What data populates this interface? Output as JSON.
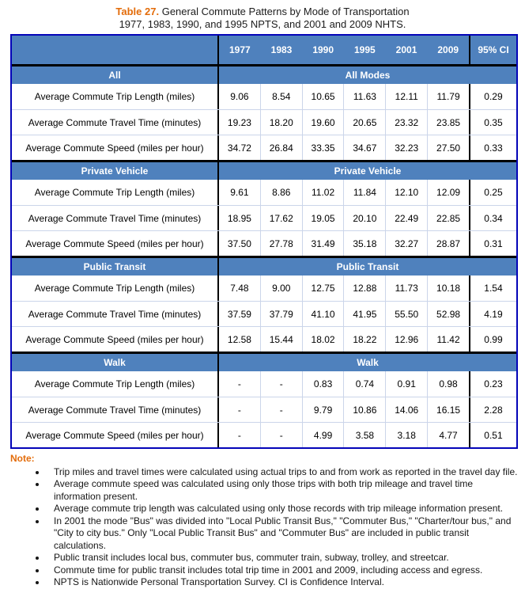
{
  "title": {
    "number": "Table 27.",
    "line1": " General Commute Patterns by Mode of Transportation",
    "line2": "1977, 1983, 1990, and 1995 NPTS, and 2001 and 2009 NHTS."
  },
  "table": {
    "year_headers": [
      "1977",
      "1983",
      "1990",
      "1995",
      "2001",
      "2009"
    ],
    "ci_header": "95% CI",
    "sections": [
      {
        "label": "All",
        "span_label": "All Modes",
        "rows": [
          {
            "label": "Average Commute Trip Length (miles)",
            "values": [
              "9.06",
              "8.54",
              "10.65",
              "11.63",
              "12.11",
              "11.79"
            ],
            "ci": "0.29"
          },
          {
            "label": "Average Commute Travel Time (minutes)",
            "values": [
              "19.23",
              "18.20",
              "19.60",
              "20.65",
              "23.32",
              "23.85"
            ],
            "ci": "0.35"
          },
          {
            "label": "Average Commute Speed (miles per hour)",
            "values": [
              "34.72",
              "26.84",
              "33.35",
              "34.67",
              "32.23",
              "27.50"
            ],
            "ci": "0.33"
          }
        ]
      },
      {
        "label": "Private Vehicle",
        "span_label": "Private Vehicle",
        "rows": [
          {
            "label": "Average Commute Trip Length (miles)",
            "values": [
              "9.61",
              "8.86",
              "11.02",
              "11.84",
              "12.10",
              "12.09"
            ],
            "ci": "0.25"
          },
          {
            "label": "Average Commute Travel Time (minutes)",
            "values": [
              "18.95",
              "17.62",
              "19.05",
              "20.10",
              "22.49",
              "22.85"
            ],
            "ci": "0.34"
          },
          {
            "label": "Average Commute Speed (miles per hour)",
            "values": [
              "37.50",
              "27.78",
              "31.49",
              "35.18",
              "32.27",
              "28.87"
            ],
            "ci": "0.31"
          }
        ]
      },
      {
        "label": "Public Transit",
        "span_label": "Public Transit",
        "rows": [
          {
            "label": "Average Commute Trip Length (miles)",
            "values": [
              "7.48",
              "9.00",
              "12.75",
              "12.88",
              "11.73",
              "10.18"
            ],
            "ci": "1.54"
          },
          {
            "label": "Average Commute Travel Time (minutes)",
            "values": [
              "37.59",
              "37.79",
              "41.10",
              "41.95",
              "55.50",
              "52.98"
            ],
            "ci": "4.19"
          },
          {
            "label": "Average Commute Speed (miles per hour)",
            "values": [
              "12.58",
              "15.44",
              "18.02",
              "18.22",
              "12.96",
              "11.42"
            ],
            "ci": "0.99"
          }
        ]
      },
      {
        "label": "Walk",
        "span_label": "Walk",
        "rows": [
          {
            "label": "Average Commute Trip Length (miles)",
            "values": [
              "-",
              "-",
              "0.83",
              "0.74",
              "0.91",
              "0.98"
            ],
            "ci": "0.23"
          },
          {
            "label": "Average Commute Travel Time (minutes)",
            "values": [
              "-",
              "-",
              "9.79",
              "10.86",
              "14.06",
              "16.15"
            ],
            "ci": "2.28"
          },
          {
            "label": "Average Commute Speed (miles per hour)",
            "values": [
              "-",
              "-",
              "4.99",
              "3.58",
              "3.18",
              "4.77"
            ],
            "ci": "0.51"
          }
        ]
      }
    ]
  },
  "notes": {
    "label": "Note:",
    "items": [
      "Trip miles and travel times were calculated using actual trips to and from work as reported in the travel day file.",
      "Average commute speed was calculated using only those trips with both trip mileage and travel time information present.",
      "Average commute trip length was calculated using only those records with trip mileage information present.",
      "In 2001 the mode \"Bus\" was divided into \"Local Public Transit Bus,\" \"Commuter Bus,\" \"Charter/tour bus,\" and \"City to city bus.\" Only \"Local Public Transit Bus\" and \"Commuter Bus\" are included in public transit calculations.",
      "Public transit includes local bus, commuter bus, commuter train, subway, trolley, and streetcar.",
      "Commute time for public transit includes total trip time in 2001 and 2009, including access and egress.",
      "NPTS is Nationwide Personal Transportation Survey. CI is Confidence Interval."
    ]
  },
  "colors": {
    "header_blue": "#4F81BD",
    "outer_border": "#0404B8",
    "black_rule": "#000000",
    "grid_line": "#CBD5EA",
    "accent_orange": "#E36C0A"
  }
}
